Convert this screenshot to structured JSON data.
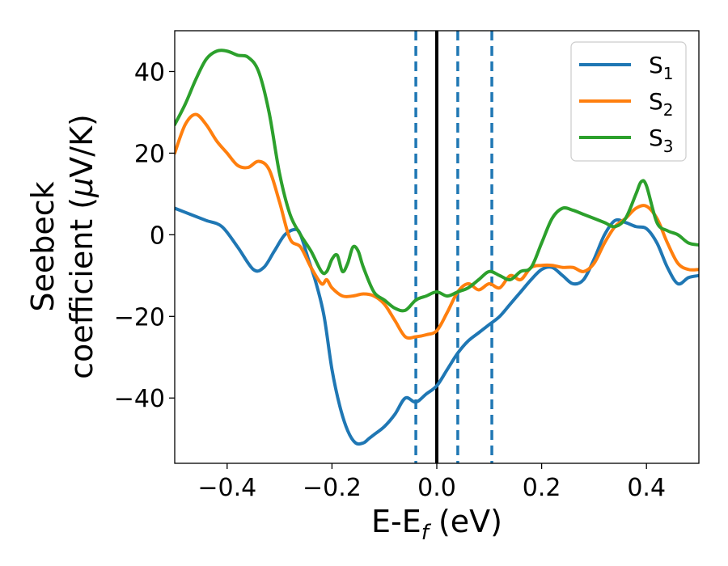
{
  "chart_data": {
    "type": "line",
    "title": "",
    "xlabel": {
      "main": "E-E",
      "sub": "f",
      "unit": " (eV)"
    },
    "ylabel": {
      "line1": "Seebeck",
      "line2": "coefficient  (",
      "mu": "μ",
      "line2_end": "V/K)"
    },
    "xlim": [
      -0.5,
      0.5
    ],
    "ylim": [
      -56,
      50
    ],
    "xticks": [
      -0.4,
      -0.2,
      0.0,
      0.2,
      0.4
    ],
    "xtick_labels": [
      "−0.4",
      "−0.2",
      "0.0",
      "0.2",
      "0.4"
    ],
    "yticks": [
      -40,
      -20,
      0,
      20,
      40
    ],
    "ytick_labels": [
      "−40",
      "−20",
      "0",
      "20",
      "40"
    ],
    "grid": false,
    "legend_position": "top-right",
    "vlines": [
      {
        "x": -0.04,
        "style": "dashed",
        "color": "#1f77b4"
      },
      {
        "x": 0.0,
        "style": "solid",
        "color": "#000000"
      },
      {
        "x": 0.04,
        "style": "dashed",
        "color": "#1f77b4"
      },
      {
        "x": 0.105,
        "style": "dashed",
        "color": "#1f77b4"
      }
    ],
    "series": [
      {
        "name": "S",
        "sub": "1",
        "color": "#1f77b4",
        "x": [
          -0.5,
          -0.47,
          -0.44,
          -0.41,
          -0.38,
          -0.35,
          -0.33,
          -0.31,
          -0.29,
          -0.27,
          -0.26,
          -0.245,
          -0.23,
          -0.215,
          -0.2,
          -0.185,
          -0.17,
          -0.155,
          -0.14,
          -0.13,
          -0.12,
          -0.1,
          -0.08,
          -0.06,
          -0.04,
          -0.02,
          0.0,
          0.02,
          0.04,
          0.06,
          0.08,
          0.1,
          0.12,
          0.14,
          0.16,
          0.18,
          0.2,
          0.22,
          0.24,
          0.26,
          0.28,
          0.3,
          0.32,
          0.34,
          0.36,
          0.38,
          0.4,
          0.42,
          0.44,
          0.46,
          0.48,
          0.5
        ],
        "y": [
          6.5,
          5,
          3.5,
          2,
          -3,
          -8.5,
          -8,
          -4,
          0,
          1.3,
          0,
          -6,
          -12,
          -20,
          -33,
          -42,
          -48,
          -51,
          -51,
          -50,
          -49,
          -47,
          -44,
          -40,
          -41,
          -39,
          -37,
          -33,
          -29,
          -26,
          -24,
          -22,
          -20,
          -17,
          -14,
          -11,
          -8.5,
          -8,
          -10,
          -12,
          -11,
          -6,
          0,
          3.5,
          3,
          2,
          1.5,
          -2,
          -8,
          -12,
          -10.5,
          -10
        ]
      },
      {
        "name": "S",
        "sub": "2",
        "color": "#ff7f0e",
        "x": [
          -0.5,
          -0.48,
          -0.46,
          -0.44,
          -0.42,
          -0.4,
          -0.38,
          -0.36,
          -0.34,
          -0.32,
          -0.3,
          -0.28,
          -0.26,
          -0.24,
          -0.22,
          -0.21,
          -0.2,
          -0.18,
          -0.16,
          -0.14,
          -0.12,
          -0.1,
          -0.08,
          -0.06,
          -0.04,
          -0.02,
          0.0,
          0.02,
          0.04,
          0.06,
          0.08,
          0.1,
          0.12,
          0.14,
          0.16,
          0.18,
          0.2,
          0.22,
          0.24,
          0.26,
          0.28,
          0.3,
          0.32,
          0.34,
          0.36,
          0.38,
          0.4,
          0.42,
          0.44,
          0.46,
          0.48,
          0.5
        ],
        "y": [
          20,
          27,
          29.5,
          27,
          23,
          20,
          17,
          16.5,
          18,
          16,
          8,
          -1,
          -3,
          -8,
          -12,
          -11,
          -13,
          -15,
          -15,
          -14.5,
          -15,
          -17,
          -21,
          -25,
          -25,
          -24.5,
          -23.5,
          -19,
          -14,
          -12,
          -13.5,
          -12,
          -13,
          -10,
          -11,
          -8,
          -7.5,
          -7.5,
          -8,
          -8,
          -9,
          -7,
          -2,
          2,
          4,
          6.5,
          7,
          4,
          -2,
          -7,
          -8.5,
          -8.5
        ]
      },
      {
        "name": "S",
        "sub": "3",
        "color": "#2ca02c",
        "x": [
          -0.5,
          -0.48,
          -0.46,
          -0.44,
          -0.42,
          -0.4,
          -0.38,
          -0.36,
          -0.34,
          -0.32,
          -0.3,
          -0.28,
          -0.26,
          -0.24,
          -0.22,
          -0.21,
          -0.2,
          -0.19,
          -0.18,
          -0.17,
          -0.16,
          -0.15,
          -0.14,
          -0.12,
          -0.1,
          -0.08,
          -0.06,
          -0.04,
          -0.02,
          0.0,
          0.02,
          0.04,
          0.06,
          0.08,
          0.1,
          0.12,
          0.14,
          0.16,
          0.18,
          0.2,
          0.22,
          0.24,
          0.26,
          0.28,
          0.3,
          0.32,
          0.34,
          0.36,
          0.38,
          0.39,
          0.4,
          0.42,
          0.44,
          0.46,
          0.48,
          0.5
        ],
        "y": [
          27,
          32,
          38,
          43,
          45,
          45,
          44,
          43.5,
          40,
          30,
          15,
          5,
          0,
          -4,
          -9,
          -9,
          -6,
          -5,
          -9,
          -7,
          -3,
          -4,
          -8,
          -14,
          -16,
          -18,
          -18.5,
          -16,
          -15,
          -14,
          -15,
          -14,
          -13,
          -11,
          -9,
          -10,
          -11,
          -9,
          -8,
          -2,
          4,
          6.5,
          6,
          5,
          4,
          3,
          2,
          4,
          10,
          13,
          12,
          3,
          1,
          0,
          -2,
          -2.5
        ]
      }
    ]
  }
}
